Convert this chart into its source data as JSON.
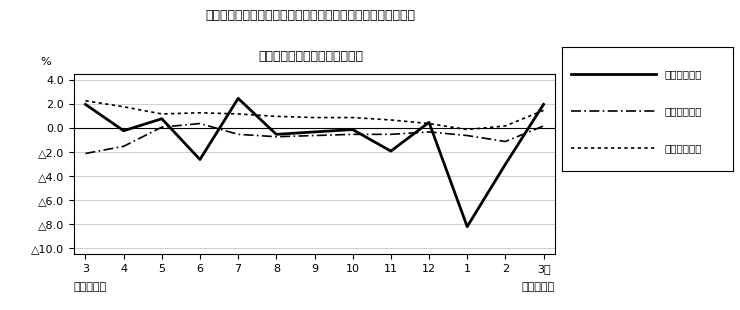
{
  "title_line1": "第４図　賃金、労働時間、常用雇用指数　対前年同月比の推移",
  "title_line2": "（規模５人以上　調査産業計）",
  "xlabel_left": "平成２３年",
  "xlabel_right": "平成２４年",
  "x_labels": [
    "3",
    "4",
    "5",
    "6",
    "7",
    "8",
    "9",
    "10",
    "11",
    "12",
    "1",
    "2",
    "3月"
  ],
  "ylabel": "%",
  "ylim": [
    -10.5,
    4.5
  ],
  "yticks": [
    4.0,
    2.0,
    0.0,
    -2.0,
    -4.0,
    -6.0,
    -8.0,
    -10.0
  ],
  "ytick_labels": [
    "4.0",
    "2.0",
    "0.0",
    "△2.0",
    "△4.0",
    "△6.0",
    "△8.0",
    "△10.0"
  ],
  "line1_name": "現金給与総額",
  "line2_name": "総実労働時間",
  "line3_name": "常用雇用指数",
  "line1_values": [
    2.0,
    -0.2,
    0.8,
    -2.6,
    2.5,
    -0.5,
    -0.3,
    -0.1,
    -1.9,
    0.5,
    -8.2,
    -3.0,
    2.0
  ],
  "line2_values": [
    -2.1,
    -1.5,
    0.1,
    0.4,
    -0.5,
    -0.7,
    -0.6,
    -0.5,
    -0.5,
    -0.3,
    -0.6,
    -1.1,
    0.2
  ],
  "line3_values": [
    2.3,
    1.8,
    1.2,
    1.3,
    1.2,
    1.0,
    0.9,
    0.9,
    0.7,
    0.4,
    -0.1,
    0.2,
    1.5
  ],
  "background_color": "#ffffff"
}
